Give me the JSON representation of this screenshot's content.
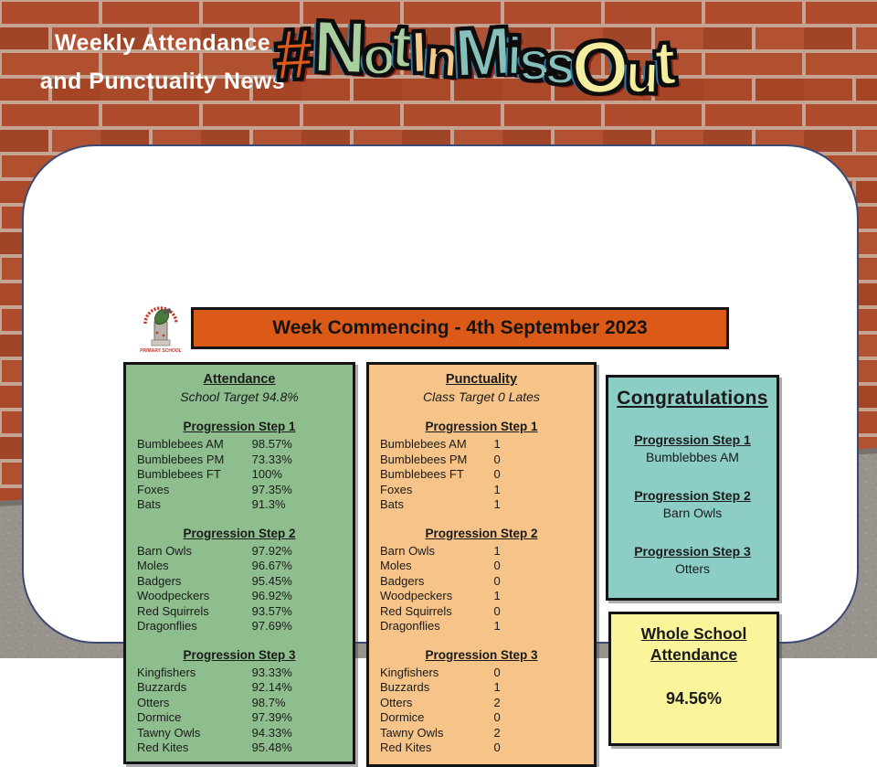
{
  "header": {
    "title_line1": "Weekly Attendance",
    "title_line2": "and Punctuality News",
    "hashtag_letters": [
      {
        "ch": "#",
        "color": "#DE5A1E"
      },
      {
        "ch": "N",
        "color": "#A9CE9F"
      },
      {
        "ch": "o",
        "color": "#A9CE9F"
      },
      {
        "ch": "t",
        "color": "#A9CE9F"
      },
      {
        "ch": "I",
        "color": "#F4C98C"
      },
      {
        "ch": "n",
        "color": "#F4C98C"
      },
      {
        "ch": "M",
        "color": "#86C0BC"
      },
      {
        "ch": "i",
        "color": "#86C0BC"
      },
      {
        "ch": "s",
        "color": "#86C0BC"
      },
      {
        "ch": "s",
        "color": "#86C0BC"
      },
      {
        "ch": "O",
        "color": "#F4EFA0"
      },
      {
        "ch": "u",
        "color": "#F4EFA0"
      },
      {
        "ch": "t",
        "color": "#F4EFA0"
      }
    ]
  },
  "school_logo": {
    "caption": "PRIMARY SCHOOL"
  },
  "banner": {
    "text": "Week Commencing - 4th September 2023"
  },
  "attendance": {
    "title": "Attendance",
    "subtitle": "School Target 94.8%",
    "sections": [
      {
        "header": "Progression Step 1",
        "rows": [
          [
            "Bumblebees AM",
            "98.57%"
          ],
          [
            "Bumblebees PM",
            "73.33%"
          ],
          [
            "Bumblebees FT",
            "100%"
          ],
          [
            "Foxes",
            "97.35%"
          ],
          [
            "Bats",
            "91.3%"
          ]
        ]
      },
      {
        "header": "Progression Step 2",
        "rows": [
          [
            "Barn Owls",
            "97.92%"
          ],
          [
            "Moles",
            "96.67%"
          ],
          [
            "Badgers",
            "95.45%"
          ],
          [
            "Woodpeckers",
            "96.92%"
          ],
          [
            "Red Squirrels",
            "93.57%"
          ],
          [
            "Dragonflies",
            "97.69%"
          ]
        ]
      },
      {
        "header": "Progression Step 3",
        "rows": [
          [
            "Kingfishers",
            "93.33%"
          ],
          [
            "Buzzards",
            "92.14%"
          ],
          [
            "Otters",
            "98.7%"
          ],
          [
            "Dormice",
            "97.39%"
          ],
          [
            "Tawny Owls",
            "94.33%"
          ],
          [
            "Red Kites",
            "95.48%"
          ]
        ]
      }
    ]
  },
  "punctuality": {
    "title": "Punctuality",
    "subtitle": "Class Target 0 Lates",
    "sections": [
      {
        "header": "Progression Step 1",
        "rows": [
          [
            "Bumblebees AM",
            "1"
          ],
          [
            "Bumblebees PM",
            "0"
          ],
          [
            "Bumblebees FT",
            "0"
          ],
          [
            "Foxes",
            "1"
          ],
          [
            "Bats",
            "1"
          ]
        ]
      },
      {
        "header": "Progression Step 2",
        "rows": [
          [
            "Barn Owls",
            "1"
          ],
          [
            "Moles",
            "0"
          ],
          [
            "Badgers",
            "0"
          ],
          [
            "Woodpeckers",
            "1"
          ],
          [
            "Red Squirrels",
            "0"
          ],
          [
            "Dragonflies",
            "1"
          ]
        ]
      },
      {
        "header": "Progression Step 3",
        "rows": [
          [
            "Kingfishers",
            "0"
          ],
          [
            "Buzzards",
            "1"
          ],
          [
            "Otters",
            "2"
          ],
          [
            "Dormice",
            "0"
          ],
          [
            "Tawny Owls",
            "2"
          ],
          [
            "Red Kites",
            "0"
          ]
        ]
      }
    ]
  },
  "congratulations": {
    "title": "Congratulations",
    "entries": [
      {
        "header": "Progression Step 1",
        "winner": "Bumblebbes AM"
      },
      {
        "header": "Progression Step 2",
        "winner": "Barn Owls"
      },
      {
        "header": "Progression Step 3",
        "winner": "Otters"
      }
    ]
  },
  "whole_school": {
    "title_line1": "Whole School",
    "title_line2": "Attendance",
    "value": "94.56%"
  },
  "colors": {
    "banner_bg": "#DC5A18",
    "attendance_bg": "#8FBE8E",
    "punctuality_bg": "#F6C489",
    "congrats_bg": "#8CCEC5",
    "whole_school_bg": "#FAF49B",
    "brick": "#AC4A2B",
    "mortar": "#C4A392",
    "pavement": "#99938D"
  }
}
